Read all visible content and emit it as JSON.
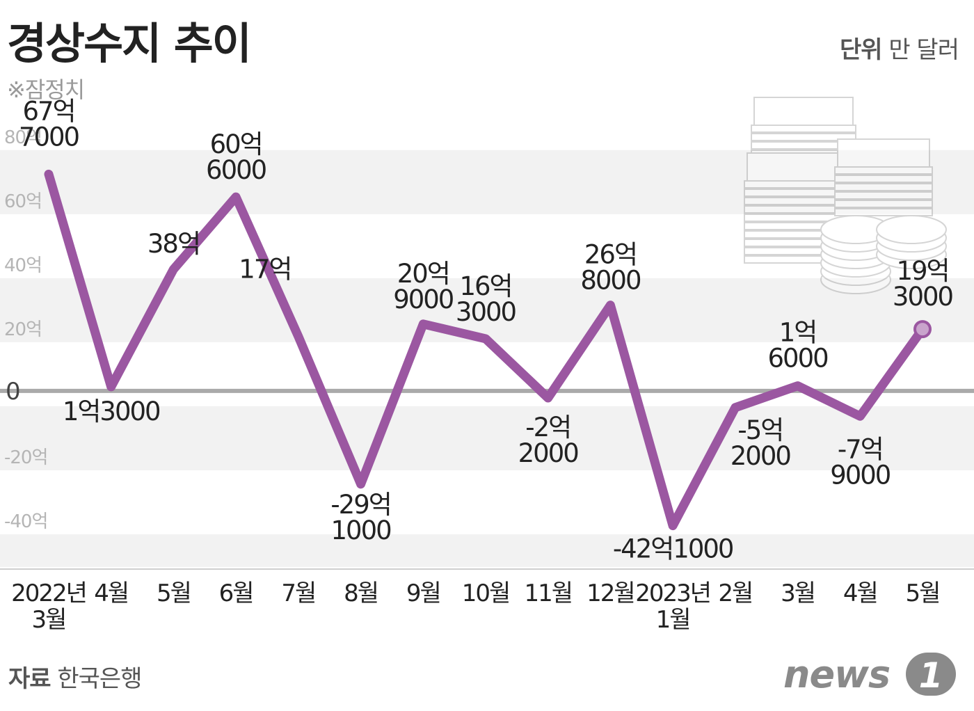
{
  "title": "경상수지 추이",
  "note": "※잠정치",
  "unit": {
    "label": "단위",
    "value": "만 달러"
  },
  "source": {
    "label": "자료",
    "value": "한국은행"
  },
  "logo": {
    "text": "news",
    "mark": "1"
  },
  "colors": {
    "line": "#9b57a1",
    "zero_line": "#aaaaaa",
    "band": "#f2f2f2"
  },
  "chart_data": {
    "type": "line",
    "title": "경상수지 추이",
    "ylabel": "단위 만 달러",
    "ylim": [
      -550000,
      830000
    ],
    "yticks": [
      {
        "value": 800000,
        "label": "80억"
      },
      {
        "value": 600000,
        "label": "60억"
      },
      {
        "value": 400000,
        "label": "40억"
      },
      {
        "value": 200000,
        "label": "20억"
      },
      {
        "value": 0,
        "label": "0"
      },
      {
        "value": -200000,
        "label": "-20억"
      },
      {
        "value": -400000,
        "label": "-40억"
      }
    ],
    "categories": [
      [
        "2022년",
        "3월"
      ],
      [
        "4월"
      ],
      [
        "5월"
      ],
      [
        "6월"
      ],
      [
        "7월"
      ],
      [
        "8월"
      ],
      [
        "9월"
      ],
      [
        "10월"
      ],
      [
        "11월"
      ],
      [
        "12월"
      ],
      [
        "2023년",
        "1월"
      ],
      [
        "2월"
      ],
      [
        "3월"
      ],
      [
        "4월"
      ],
      [
        "5월"
      ]
    ],
    "values": [
      677000,
      13000,
      380000,
      606000,
      170000,
      -291000,
      209000,
      163000,
      -22000,
      268000,
      -421000,
      -52000,
      16000,
      -79000,
      193000
    ],
    "data_labels": [
      [
        "67억",
        "7000"
      ],
      [
        "1억3000"
      ],
      [
        "38억"
      ],
      [
        "60억",
        "6000"
      ],
      [
        "17억"
      ],
      [
        "-29억",
        "1000"
      ],
      [
        "20억",
        "9000"
      ],
      [
        "16억",
        "3000"
      ],
      [
        "-2억",
        "2000"
      ],
      [
        "26억",
        "8000"
      ],
      [
        "-42억1000"
      ],
      [
        "-5억",
        "2000"
      ],
      [
        "1억",
        "6000"
      ],
      [
        "-7억",
        "9000"
      ],
      [
        "19억",
        "3000"
      ]
    ]
  }
}
